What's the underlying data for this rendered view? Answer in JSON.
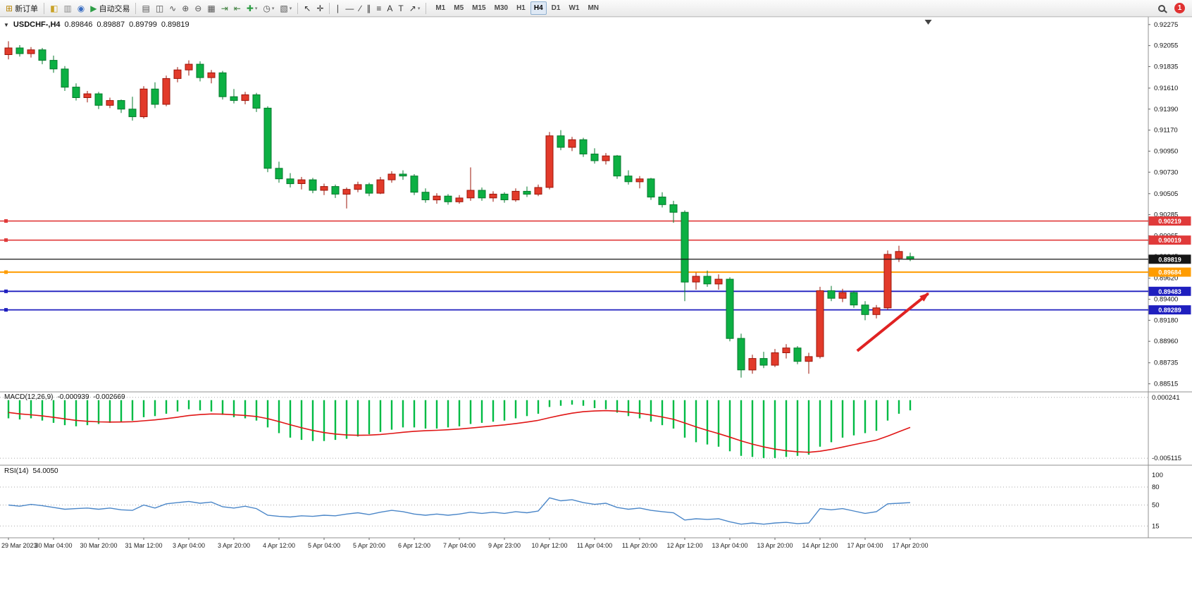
{
  "toolbar": {
    "notification_count": "1",
    "items": [
      {
        "name": "new-order-button",
        "glyph": "⊞",
        "glyph_color": "#b8860b",
        "label": "新订单"
      },
      {
        "name": "sep"
      },
      {
        "name": "chart-window-button",
        "glyph": "◧",
        "glyph_color": "#c9a227"
      },
      {
        "name": "profiles-button",
        "glyph": "▥",
        "glyph_color": "#8a8a8a"
      },
      {
        "name": "refresh-button",
        "glyph": "◉",
        "glyph_color": "#3a6ec2"
      },
      {
        "name": "auto-trading-button",
        "glyph": "▶",
        "glyph_color": "#2e9e46",
        "label": "自动交易"
      },
      {
        "name": "sep"
      },
      {
        "name": "bar-chart-type-button",
        "glyph": "▤",
        "glyph_color": "#555555"
      },
      {
        "name": "candlestick-type-button",
        "glyph": "◫",
        "glyph_color": "#555555"
      },
      {
        "name": "line-chart-type-button",
        "glyph": "∿",
        "glyph_color": "#555555"
      },
      {
        "name": "zoom-in-button",
        "glyph": "⊕",
        "glyph_color": "#555555"
      },
      {
        "name": "zoom-out-button",
        "glyph": "⊖",
        "glyph_color": "#555555"
      },
      {
        "name": "tile-windows-button",
        "glyph": "▦",
        "glyph_color": "#555555"
      },
      {
        "name": "auto-scroll-button",
        "glyph": "⇥",
        "glyph_color": "#3a7d3a"
      },
      {
        "name": "chart-shift-button",
        "glyph": "⇤",
        "glyph_color": "#3a7d3a"
      },
      {
        "name": "indicators-button",
        "glyph": "✚",
        "glyph_color": "#2e9e46",
        "dd": true
      },
      {
        "name": "periods-button",
        "glyph": "◷",
        "glyph_color": "#555555",
        "dd": true
      },
      {
        "name": "templates-button",
        "glyph": "▧",
        "glyph_color": "#555555",
        "dd": true
      },
      {
        "name": "sep"
      },
      {
        "name": "cursor-button",
        "glyph": "↖",
        "glyph_color": "#333333"
      },
      {
        "name": "crosshair-button",
        "glyph": "✛",
        "glyph_color": "#333333"
      },
      {
        "name": "sep"
      },
      {
        "name": "vertical-line-button",
        "glyph": "∣",
        "glyph_color": "#333333"
      },
      {
        "name": "horizontal-line-button",
        "glyph": "―",
        "glyph_color": "#333333"
      },
      {
        "name": "trendline-button",
        "glyph": "∕",
        "glyph_color": "#333333"
      },
      {
        "name": "channel-button",
        "glyph": "∥",
        "glyph_color": "#333333"
      },
      {
        "name": "fibonacci-button",
        "glyph": "≡",
        "glyph_color": "#333333"
      },
      {
        "name": "text-button",
        "glyph": "A",
        "glyph_color": "#333333"
      },
      {
        "name": "label-button",
        "glyph": "T",
        "glyph_color": "#333333"
      },
      {
        "name": "arrows-button",
        "glyph": "↗",
        "glyph_color": "#333333",
        "dd": true
      },
      {
        "name": "sep"
      }
    ],
    "timeframes": [
      "M1",
      "M5",
      "M15",
      "M30",
      "H1",
      "H4",
      "D1",
      "W1",
      "MN"
    ],
    "active_timeframe": "H4"
  },
  "chart_data": {
    "type": "candlestick",
    "symbol": "USDCHF-",
    "timeframe": "H4",
    "header": {
      "collapse_glyph": "▼",
      "symbol_period": "USDCHF-,H4",
      "open": "0.89846",
      "high": "0.89887",
      "low": "0.89799",
      "close": "0.89819"
    },
    "price_range": {
      "min": 0.8846,
      "max": 0.9234
    },
    "price_ticks": [
      "0.92275",
      "0.92055",
      "0.91835",
      "0.91610",
      "0.91390",
      "0.91170",
      "0.90950",
      "0.90730",
      "0.90505",
      "0.90285",
      "0.90065",
      "0.89845",
      "0.89620",
      "0.89400",
      "0.89180",
      "0.88960",
      "0.88735",
      "0.88515"
    ],
    "colors": {
      "up": {
        "fill": "#e23a2a",
        "stroke": "#9c150a"
      },
      "down": {
        "fill": "#0cb043",
        "stroke": "#067a2c"
      }
    },
    "ohlc": [
      [
        0.9196,
        0.921,
        0.9191,
        0.9203
      ],
      [
        0.9203,
        0.9206,
        0.9194,
        0.9197
      ],
      [
        0.9197,
        0.9204,
        0.9193,
        0.9201
      ],
      [
        0.9201,
        0.9203,
        0.9186,
        0.919
      ],
      [
        0.919,
        0.9195,
        0.9177,
        0.9181
      ],
      [
        0.9181,
        0.9184,
        0.9158,
        0.9162
      ],
      [
        0.9162,
        0.9166,
        0.9148,
        0.9151
      ],
      [
        0.9151,
        0.9158,
        0.9146,
        0.9155
      ],
      [
        0.9155,
        0.9157,
        0.9139,
        0.9143
      ],
      [
        0.9143,
        0.9151,
        0.914,
        0.9148
      ],
      [
        0.9148,
        0.9149,
        0.9135,
        0.9139
      ],
      [
        0.9139,
        0.9152,
        0.9127,
        0.9131
      ],
      [
        0.9131,
        0.9163,
        0.9129,
        0.916
      ],
      [
        0.916,
        0.9167,
        0.914,
        0.9144
      ],
      [
        0.9144,
        0.9174,
        0.9142,
        0.9171
      ],
      [
        0.9171,
        0.9183,
        0.9167,
        0.918
      ],
      [
        0.918,
        0.919,
        0.9174,
        0.9186
      ],
      [
        0.9186,
        0.9189,
        0.9168,
        0.9172
      ],
      [
        0.9172,
        0.918,
        0.9166,
        0.9177
      ],
      [
        0.9177,
        0.9179,
        0.9149,
        0.9152
      ],
      [
        0.9152,
        0.916,
        0.9145,
        0.9148
      ],
      [
        0.9148,
        0.9157,
        0.9144,
        0.9154
      ],
      [
        0.9154,
        0.9156,
        0.9136,
        0.914
      ],
      [
        0.914,
        0.9142,
        0.9073,
        0.9077
      ],
      [
        0.9077,
        0.9084,
        0.9062,
        0.9066
      ],
      [
        0.9066,
        0.9072,
        0.9057,
        0.9061
      ],
      [
        0.9061,
        0.9068,
        0.9055,
        0.9065
      ],
      [
        0.9065,
        0.9067,
        0.9051,
        0.9054
      ],
      [
        0.9054,
        0.9061,
        0.9049,
        0.9058
      ],
      [
        0.9058,
        0.906,
        0.9046,
        0.905
      ],
      [
        0.905,
        0.9057,
        0.9035,
        0.9055
      ],
      [
        0.9055,
        0.9063,
        0.9052,
        0.906
      ],
      [
        0.906,
        0.9062,
        0.9048,
        0.9051
      ],
      [
        0.9051,
        0.9068,
        0.905,
        0.9065
      ],
      [
        0.9065,
        0.9074,
        0.9062,
        0.9071
      ],
      [
        0.9071,
        0.9075,
        0.9065,
        0.9069
      ],
      [
        0.9069,
        0.9071,
        0.9049,
        0.9052
      ],
      [
        0.9052,
        0.9056,
        0.9041,
        0.9044
      ],
      [
        0.9044,
        0.9051,
        0.904,
        0.9048
      ],
      [
        0.9048,
        0.905,
        0.9039,
        0.9042
      ],
      [
        0.9042,
        0.9049,
        0.904,
        0.9046
      ],
      [
        0.9046,
        0.9078,
        0.9043,
        0.9054
      ],
      [
        0.9054,
        0.9057,
        0.9043,
        0.9046
      ],
      [
        0.9046,
        0.9053,
        0.9042,
        0.905
      ],
      [
        0.905,
        0.9052,
        0.9041,
        0.9044
      ],
      [
        0.9044,
        0.9056,
        0.9042,
        0.9053
      ],
      [
        0.9053,
        0.9058,
        0.9047,
        0.905
      ],
      [
        0.905,
        0.906,
        0.9048,
        0.9057
      ],
      [
        0.9057,
        0.9115,
        0.9055,
        0.9111
      ],
      [
        0.9111,
        0.9117,
        0.9096,
        0.9099
      ],
      [
        0.9099,
        0.911,
        0.9095,
        0.9107
      ],
      [
        0.9107,
        0.9109,
        0.9089,
        0.9092
      ],
      [
        0.9092,
        0.9098,
        0.9082,
        0.9085
      ],
      [
        0.9085,
        0.9093,
        0.9081,
        0.909
      ],
      [
        0.909,
        0.9091,
        0.9066,
        0.9069
      ],
      [
        0.9069,
        0.9075,
        0.906,
        0.9063
      ],
      [
        0.9063,
        0.9069,
        0.9056,
        0.9066
      ],
      [
        0.9066,
        0.9067,
        0.9044,
        0.9047
      ],
      [
        0.9047,
        0.9052,
        0.9036,
        0.9039
      ],
      [
        0.9039,
        0.9043,
        0.902,
        0.9031
      ],
      [
        0.9031,
        0.9033,
        0.8938,
        0.8958
      ],
      [
        0.8958,
        0.8968,
        0.895,
        0.8964
      ],
      [
        0.8964,
        0.897,
        0.8953,
        0.8956
      ],
      [
        0.8956,
        0.8966,
        0.895,
        0.8961
      ],
      [
        0.8961,
        0.8963,
        0.8896,
        0.8899
      ],
      [
        0.8899,
        0.8904,
        0.8858,
        0.8866
      ],
      [
        0.8866,
        0.8882,
        0.8862,
        0.8878
      ],
      [
        0.8878,
        0.8885,
        0.8868,
        0.8871
      ],
      [
        0.8871,
        0.8888,
        0.8869,
        0.8884
      ],
      [
        0.8884,
        0.8893,
        0.8878,
        0.8889
      ],
      [
        0.8889,
        0.8891,
        0.8872,
        0.8875
      ],
      [
        0.8875,
        0.8884,
        0.8862,
        0.888
      ],
      [
        0.888,
        0.8953,
        0.8878,
        0.8949
      ],
      [
        0.8949,
        0.8954,
        0.8938,
        0.8941
      ],
      [
        0.8941,
        0.8951,
        0.8937,
        0.8947
      ],
      [
        0.8947,
        0.8949,
        0.8931,
        0.8934
      ],
      [
        0.8934,
        0.8938,
        0.8918,
        0.8924
      ],
      [
        0.8924,
        0.8934,
        0.892,
        0.8931
      ],
      [
        0.8931,
        0.8991,
        0.8929,
        0.8987
      ],
      [
        0.8983,
        0.8996,
        0.8979,
        0.899
      ],
      [
        0.89846,
        0.89887,
        0.89799,
        0.89819
      ]
    ],
    "levels": [
      {
        "price": 0.90219,
        "label": "0.90219",
        "color": "#e03a3a",
        "width": 1.6
      },
      {
        "price": 0.90019,
        "label": "0.90019",
        "color": "#e03a3a",
        "width": 1.6
      },
      {
        "price": 0.89684,
        "label": "0.89684",
        "color": "#ff9c00",
        "width": 2
      },
      {
        "price": 0.89483,
        "label": "0.89483",
        "color": "#1f1fbf",
        "width": 1.8
      },
      {
        "price": 0.89289,
        "label": "0.89289",
        "color": "#1f1fbf",
        "width": 1.8
      }
    ],
    "current_price": {
      "value": 0.89819,
      "label": "0.89819",
      "color": "#151515"
    },
    "time_labels": [
      "29 Mar 2023",
      "30 Mar 04:00",
      "30 Mar 20:00",
      "31 Mar 12:00",
      "3 Apr 04:00",
      "3 Apr 20:00",
      "4 Apr 12:00",
      "5 Apr 04:00",
      "5 Apr 20:00",
      "6 Apr 12:00",
      "7 Apr 04:00",
      "9 Apr 23:00",
      "10 Apr 12:00",
      "11 Apr 04:00",
      "11 Apr 20:00",
      "12 Apr 12:00",
      "13 Apr 04:00",
      "13 Apr 20:00",
      "14 Apr 12:00",
      "17 Apr 04:00",
      "17 Apr 20:00"
    ],
    "indicators": {
      "macd": {
        "label": "MACD(12,26,9)",
        "main_value": "-0.000939",
        "signal_value": "-0.002669",
        "histogram_color": "#00bb44",
        "signal_color": "#e01616",
        "scale_labels": [
          "0.000241",
          "-0.005115"
        ],
        "scale_values": [
          0.000241,
          -0.005115
        ],
        "range": {
          "min": -0.0056,
          "max": 0.0006
        },
        "histogram": [
          -0.0016,
          -0.0017,
          -0.0016,
          -0.0018,
          -0.002,
          -0.0022,
          -0.0023,
          -0.0022,
          -0.0021,
          -0.002,
          -0.0019,
          -0.0018,
          -0.0015,
          -0.0014,
          -0.0012,
          -0.001,
          -0.0008,
          -0.0009,
          -0.001,
          -0.0013,
          -0.0015,
          -0.0016,
          -0.0018,
          -0.0024,
          -0.0029,
          -0.0033,
          -0.0035,
          -0.0036,
          -0.0036,
          -0.0035,
          -0.0034,
          -0.0032,
          -0.003,
          -0.0028,
          -0.0026,
          -0.0024,
          -0.0024,
          -0.0025,
          -0.0025,
          -0.0024,
          -0.0023,
          -0.0021,
          -0.002,
          -0.0019,
          -0.0018,
          -0.0016,
          -0.0014,
          -0.0012,
          -0.0006,
          -0.0005,
          -0.0004,
          -0.0005,
          -0.0007,
          -0.0008,
          -0.0011,
          -0.0014,
          -0.0016,
          -0.0019,
          -0.0022,
          -0.0025,
          -0.0033,
          -0.0037,
          -0.0039,
          -0.0041,
          -0.0045,
          -0.0049,
          -0.005,
          -0.0051,
          -0.0051,
          -0.005,
          -0.0049,
          -0.0048,
          -0.0041,
          -0.0037,
          -0.0033,
          -0.0031,
          -0.0029,
          -0.0027,
          -0.0018,
          -0.0012,
          -0.0009
        ]
      },
      "rsi": {
        "label": "RSI(14)",
        "value": "54.0050",
        "color": "#4a86c8",
        "scale_labels": [
          100,
          80,
          50,
          15
        ],
        "level_lines": [
          80,
          50,
          15
        ],
        "range": {
          "min": 0,
          "max": 100
        },
        "values": [
          50,
          48,
          51,
          49,
          46,
          43,
          44,
          45,
          43,
          45,
          42,
          41,
          50,
          45,
          52,
          54,
          56,
          53,
          55,
          47,
          45,
          48,
          44,
          33,
          31,
          30,
          32,
          31,
          33,
          32,
          35,
          37,
          34,
          38,
          41,
          39,
          35,
          33,
          35,
          33,
          35,
          38,
          36,
          38,
          36,
          39,
          37,
          40,
          62,
          57,
          59,
          54,
          51,
          53,
          46,
          43,
          45,
          41,
          39,
          37,
          25,
          27,
          26,
          27,
          22,
          18,
          20,
          18,
          20,
          21,
          19,
          20,
          44,
          42,
          44,
          40,
          36,
          39,
          52,
          53,
          54
        ]
      }
    },
    "annotations": {
      "arrow": {
        "from": {
          "bar": 75.3,
          "price": 0.8886
        },
        "to": {
          "bar": 81.6,
          "price": 0.8946
        },
        "color": "#e02222"
      },
      "shift_marker_bar": 81.6
    }
  }
}
